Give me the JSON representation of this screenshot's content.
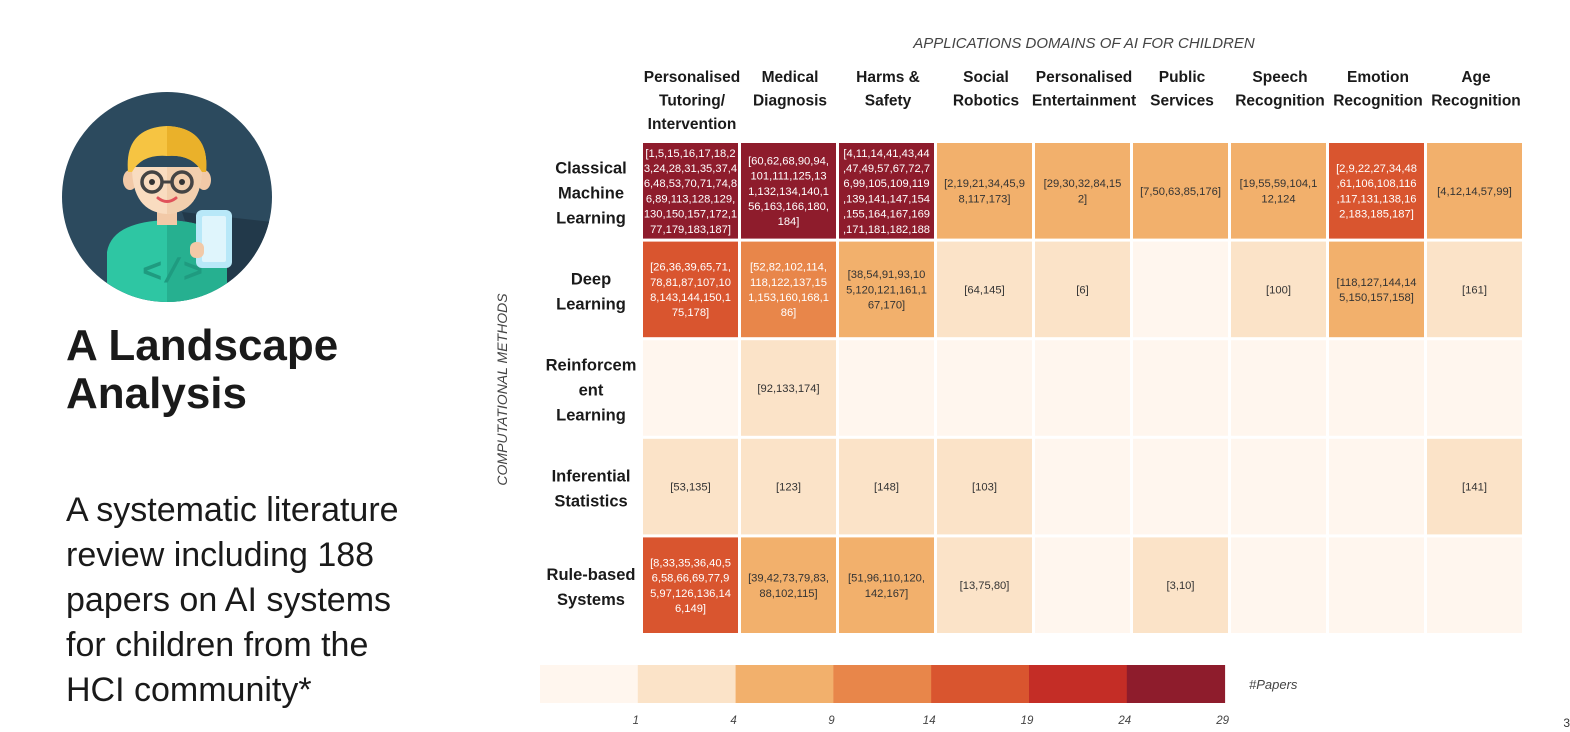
{
  "slide": {
    "title_lines": [
      "A Landscape",
      "Analysis"
    ],
    "description_lines": [
      "A systematic literature",
      "review including 188",
      "papers on AI systems",
      "for children from the",
      "HCI community*"
    ],
    "page_number": "3"
  },
  "colors": {
    "scale": [
      "#fff6ee",
      "#fbe3c8",
      "#f2b06c",
      "#e8864a",
      "#d9552f",
      "#c42d26",
      "#8e1c2c"
    ],
    "light_text": "#ffffff",
    "dark_text": "#333333"
  },
  "chart_data": {
    "type": "heatmap",
    "title": "APPLICATIONS DOMAINS OF AI FOR CHILDREN",
    "ylabel": "COMPUTATIONAL METHODS",
    "columns": [
      [
        "Personalised",
        "Tutoring/",
        "Intervention"
      ],
      [
        "Medical",
        "Diagnosis"
      ],
      [
        "Harms &",
        "Safety"
      ],
      [
        "Social",
        "Robotics"
      ],
      [
        "Personalised",
        "Entertainment"
      ],
      [
        "Public",
        "Services"
      ],
      [
        "Speech",
        "Recognition"
      ],
      [
        "Emotion",
        "Recognition"
      ],
      [
        "Age",
        "Recognition"
      ]
    ],
    "rows": [
      [
        "Classical",
        "Machine",
        "Learning"
      ],
      [
        "Deep",
        "Learning"
      ],
      [
        "Reinforcem",
        "ent",
        "Learning"
      ],
      [
        "Inferential",
        "Statistics"
      ],
      [
        "Rule-based",
        "Systems"
      ]
    ],
    "cells": [
      [
        {
          "level": 6,
          "text": [
            "[1,5,15,16,17,18,2",
            "3,24,28,31,35,37,4",
            "6,48,53,70,71,74,8",
            "6,89,113,128,129,",
            "130,150,157,172,1",
            "77,179,183,187]"
          ]
        },
        {
          "level": 6,
          "text": [
            "[60,62,68,90,94,",
            "101,111,125,13",
            "1,132,134,140,1",
            "56,163,166,180,",
            "184]"
          ]
        },
        {
          "level": 6,
          "text": [
            "[4,11,14,41,43,44",
            ",47,49,57,67,72,7",
            "6,99,105,109,119",
            ",139,141,147,154",
            ",155,164,167,169",
            ",171,181,182,188"
          ]
        },
        {
          "level": 2,
          "text": [
            "[2,19,21,34,45,9",
            "8,117,173]"
          ]
        },
        {
          "level": 2,
          "text": [
            "[29,30,32,84,15",
            "2]"
          ]
        },
        {
          "level": 2,
          "text": [
            "[7,50,63,85,176]"
          ]
        },
        {
          "level": 2,
          "text": [
            "[19,55,59,104,1",
            "12,124"
          ]
        },
        {
          "level": 4,
          "text": [
            "[2,9,22,27,34,48",
            ",61,106,108,116",
            ",117,131,138,16",
            "2,183,185,187]"
          ]
        },
        {
          "level": 2,
          "text": [
            "[4,12,14,57,99]"
          ]
        }
      ],
      [
        {
          "level": 4,
          "text": [
            "[26,36,39,65,71,",
            "78,81,87,107,10",
            "8,143,144,150,1",
            "75,178]"
          ]
        },
        {
          "level": 3,
          "text": [
            "[52,82,102,114,",
            "118,122,137,15",
            "1,153,160,168,1",
            "86]"
          ]
        },
        {
          "level": 2,
          "text": [
            "[38,54,91,93,10",
            "5,120,121,161,1",
            "67,170]"
          ]
        },
        {
          "level": 1,
          "text": [
            "[64,145]"
          ]
        },
        {
          "level": 1,
          "text": [
            "[6]"
          ]
        },
        {
          "level": 0,
          "text": []
        },
        {
          "level": 1,
          "text": [
            "[100]"
          ]
        },
        {
          "level": 2,
          "text": [
            "[118,127,144,14",
            "5,150,157,158]"
          ]
        },
        {
          "level": 1,
          "text": [
            "[161]"
          ]
        }
      ],
      [
        {
          "level": 0,
          "text": []
        },
        {
          "level": 1,
          "text": [
            "[92,133,174]"
          ]
        },
        {
          "level": 0,
          "text": []
        },
        {
          "level": 0,
          "text": []
        },
        {
          "level": 0,
          "text": []
        },
        {
          "level": 0,
          "text": []
        },
        {
          "level": 0,
          "text": []
        },
        {
          "level": 0,
          "text": []
        },
        {
          "level": 0,
          "text": []
        }
      ],
      [
        {
          "level": 1,
          "text": [
            "[53,135]"
          ]
        },
        {
          "level": 1,
          "text": [
            "[123]"
          ]
        },
        {
          "level": 1,
          "text": [
            "[148]"
          ]
        },
        {
          "level": 1,
          "text": [
            "[103]"
          ]
        },
        {
          "level": 0,
          "text": []
        },
        {
          "level": 0,
          "text": []
        },
        {
          "level": 0,
          "text": []
        },
        {
          "level": 0,
          "text": []
        },
        {
          "level": 1,
          "text": [
            "[141]"
          ]
        }
      ],
      [
        {
          "level": 4,
          "text": [
            "[8,33,35,36,40,5",
            "6,58,66,69,77,9",
            "5,97,126,136,14",
            "6,149]"
          ]
        },
        {
          "level": 2,
          "text": [
            "[39,42,73,79,83,",
            "88,102,115]"
          ]
        },
        {
          "level": 2,
          "text": [
            "[51,96,110,120,",
            "142,167]"
          ]
        },
        {
          "level": 1,
          "text": [
            "[13,75,80]"
          ]
        },
        {
          "level": 0,
          "text": []
        },
        {
          "level": 1,
          "text": [
            "[3,10]"
          ]
        },
        {
          "level": 0,
          "text": []
        },
        {
          "level": 0,
          "text": []
        },
        {
          "level": 0,
          "text": []
        }
      ]
    ],
    "colorbar": {
      "label": "#Papers",
      "ticks": [
        "1",
        "4",
        "9",
        "14",
        "19",
        "24",
        "29"
      ]
    }
  }
}
